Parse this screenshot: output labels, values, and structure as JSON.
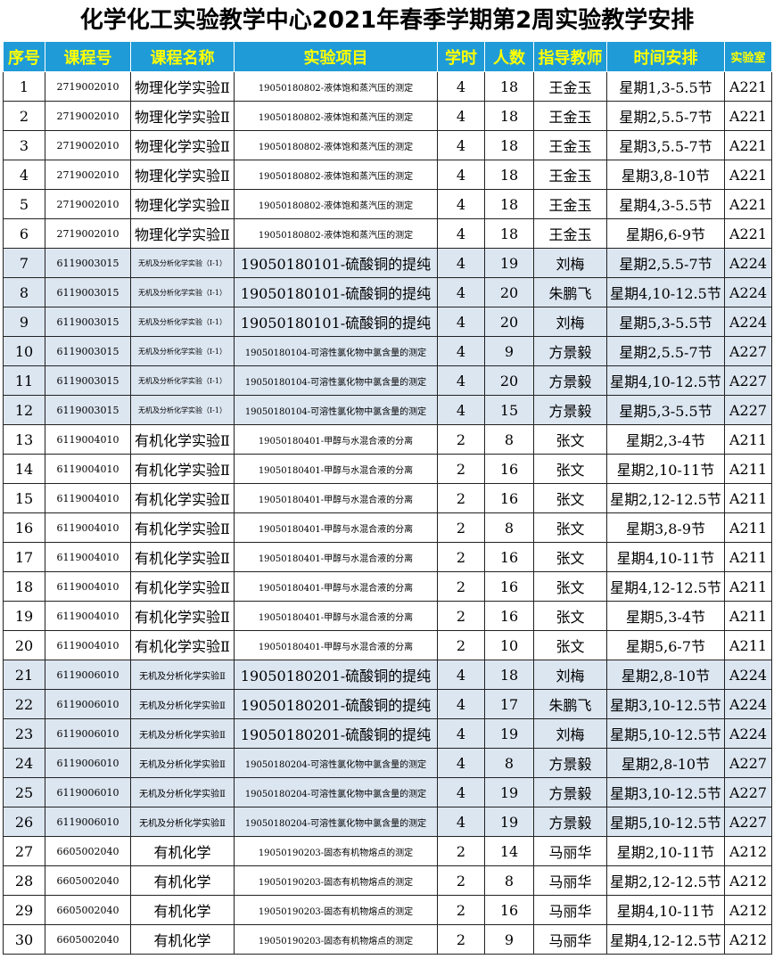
{
  "title": "化学化工实验教学中心2021年春季学期第2周实验教学安排",
  "table": {
    "header": [
      "序号",
      "课程号",
      "课程名称",
      "实验项目",
      "学时",
      "人数",
      "指导教师",
      "时间安排",
      "实验室"
    ],
    "rows": [
      [
        "1",
        "2719002010",
        "物理化学实验Ⅱ",
        "19050180802-液体饱和蒸汽压的测定",
        "4",
        "18",
        "王金玉",
        "星期1,3-5.5节",
        "A221"
      ],
      [
        "2",
        "2719002010",
        "物理化学实验Ⅱ",
        "19050180802-液体饱和蒸汽压的测定",
        "4",
        "18",
        "王金玉",
        "星期2,5.5-7节",
        "A221"
      ],
      [
        "3",
        "2719002010",
        "物理化学实验Ⅱ",
        "19050180802-液体饱和蒸汽压的测定",
        "4",
        "18",
        "王金玉",
        "星期3,5.5-7节",
        "A221"
      ],
      [
        "4",
        "2719002010",
        "物理化学实验Ⅱ",
        "19050180802-液体饱和蒸汽压的测定",
        "4",
        "18",
        "王金玉",
        "星期3,8-10节",
        "A221"
      ],
      [
        "5",
        "2719002010",
        "物理化学实验Ⅱ",
        "19050180802-液体饱和蒸汽压的测定",
        "4",
        "18",
        "王金玉",
        "星期4,3-5.5节",
        "A221"
      ],
      [
        "6",
        "2719002010",
        "物理化学实验Ⅱ",
        "19050180802-液体饱和蒸汽压的测定",
        "4",
        "18",
        "王金玉",
        "星期6,6-9节",
        "A221"
      ],
      [
        "7",
        "6119003015",
        "无机及分析化学实验（Ⅰ-1）",
        "19050180101-硫酸铜的提纯",
        "4",
        "19",
        "刘梅",
        "星期2,5.5-7节",
        "A224"
      ],
      [
        "8",
        "6119003015",
        "无机及分析化学实验（Ⅰ-1）",
        "19050180101-硫酸铜的提纯",
        "4",
        "20",
        "朱鹏飞",
        "星期4,10-12.5节",
        "A224"
      ],
      [
        "9",
        "6119003015",
        "无机及分析化学实验（Ⅰ-1）",
        "19050180101-硫酸铜的提纯",
        "4",
        "20",
        "刘梅",
        "星期5,3-5.5节",
        "A224"
      ],
      [
        "10",
        "6119003015",
        "无机及分析化学实验（Ⅰ-1）",
        "19050180104-可溶性氯化物中氯含量的测定",
        "4",
        "9",
        "方景毅",
        "星期2,5.5-7节",
        "A227"
      ],
      [
        "11",
        "6119003015",
        "无机及分析化学实验（Ⅰ-1）",
        "19050180104-可溶性氯化物中氯含量的测定",
        "4",
        "20",
        "方景毅",
        "星期4,10-12.5节",
        "A227"
      ],
      [
        "12",
        "6119003015",
        "无机及分析化学实验（Ⅰ-1）",
        "19050180104-可溶性氯化物中氯含量的测定",
        "4",
        "15",
        "方景毅",
        "星期5,3-5.5节",
        "A227"
      ],
      [
        "13",
        "6119004010",
        "有机化学实验Ⅱ",
        "19050180401-甲醇与水混合液的分离",
        "2",
        "8",
        "张文",
        "星期2,3-4节",
        "A211"
      ],
      [
        "14",
        "6119004010",
        "有机化学实验Ⅱ",
        "19050180401-甲醇与水混合液的分离",
        "2",
        "16",
        "张文",
        "星期2,10-11节",
        "A211"
      ],
      [
        "15",
        "6119004010",
        "有机化学实验Ⅱ",
        "19050180401-甲醇与水混合液的分离",
        "2",
        "16",
        "张文",
        "星期2,12-12.5节",
        "A211"
      ],
      [
        "16",
        "6119004010",
        "有机化学实验Ⅱ",
        "19050180401-甲醇与水混合液的分离",
        "2",
        "8",
        "张文",
        "星期3,8-9节",
        "A211"
      ],
      [
        "17",
        "6119004010",
        "有机化学实验Ⅱ",
        "19050180401-甲醇与水混合液的分离",
        "2",
        "16",
        "张文",
        "星期4,10-11节",
        "A211"
      ],
      [
        "18",
        "6119004010",
        "有机化学实验Ⅱ",
        "19050180401-甲醇与水混合液的分离",
        "2",
        "16",
        "张文",
        "星期4,12-12.5节",
        "A211"
      ],
      [
        "19",
        "6119004010",
        "有机化学实验Ⅱ",
        "19050180401-甲醇与水混合液的分离",
        "2",
        "16",
        "张文",
        "星期5,3-4节",
        "A211"
      ],
      [
        "20",
        "6119004010",
        "有机化学实验Ⅱ",
        "19050180401-甲醇与水混合液的分离",
        "2",
        "10",
        "张文",
        "星期5,6-7节",
        "A211"
      ],
      [
        "21",
        "6119006010",
        "无机及分析化学实验Ⅱ",
        "19050180201-硫酸铜的提纯",
        "4",
        "18",
        "刘梅",
        "星期2,8-10节",
        "A224"
      ],
      [
        "22",
        "6119006010",
        "无机及分析化学实验Ⅱ",
        "19050180201-硫酸铜的提纯",
        "4",
        "17",
        "朱鹏飞",
        "星期3,10-12.5节",
        "A224"
      ],
      [
        "23",
        "6119006010",
        "无机及分析化学实验Ⅱ",
        "19050180201-硫酸铜的提纯",
        "4",
        "19",
        "刘梅",
        "星期5,10-12.5节",
        "A224"
      ],
      [
        "24",
        "6119006010",
        "无机及分析化学实验Ⅱ",
        "19050180204-可溶性氯化物中氯含量的测定",
        "4",
        "8",
        "方景毅",
        "星期2,8-10节",
        "A227"
      ],
      [
        "25",
        "6119006010",
        "无机及分析化学实验Ⅱ",
        "19050180204-可溶性氯化物中氯含量的测定",
        "4",
        "19",
        "方景毅",
        "星期3,10-12.5节",
        "A227"
      ],
      [
        "26",
        "6119006010",
        "无机及分析化学实验Ⅱ",
        "19050180204-可溶性氯化物中氯含量的测定",
        "4",
        "19",
        "方景毅",
        "星期5,10-12.5节",
        "A227"
      ],
      [
        "27",
        "6605002040",
        "有机化学",
        "19050190203-固态有机物熔点的测定",
        "2",
        "14",
        "马丽华",
        "星期2,10-11节",
        "A212"
      ],
      [
        "28",
        "6605002040",
        "有机化学",
        "19050190203-固态有机物熔点的测定",
        "2",
        "8",
        "马丽华",
        "星期2,12-12.5节",
        "A212"
      ],
      [
        "29",
        "6605002040",
        "有机化学",
        "19050190203-固态有机物熔点的测定",
        "2",
        "16",
        "马丽华",
        "星期4,10-11节",
        "A212"
      ],
      [
        "30",
        "6605002040",
        "有机化学",
        "19050190203-固态有机物熔点的测定",
        "2",
        "9",
        "马丽华",
        "星期4,12-12.5节",
        "A212"
      ]
    ]
  }
}
